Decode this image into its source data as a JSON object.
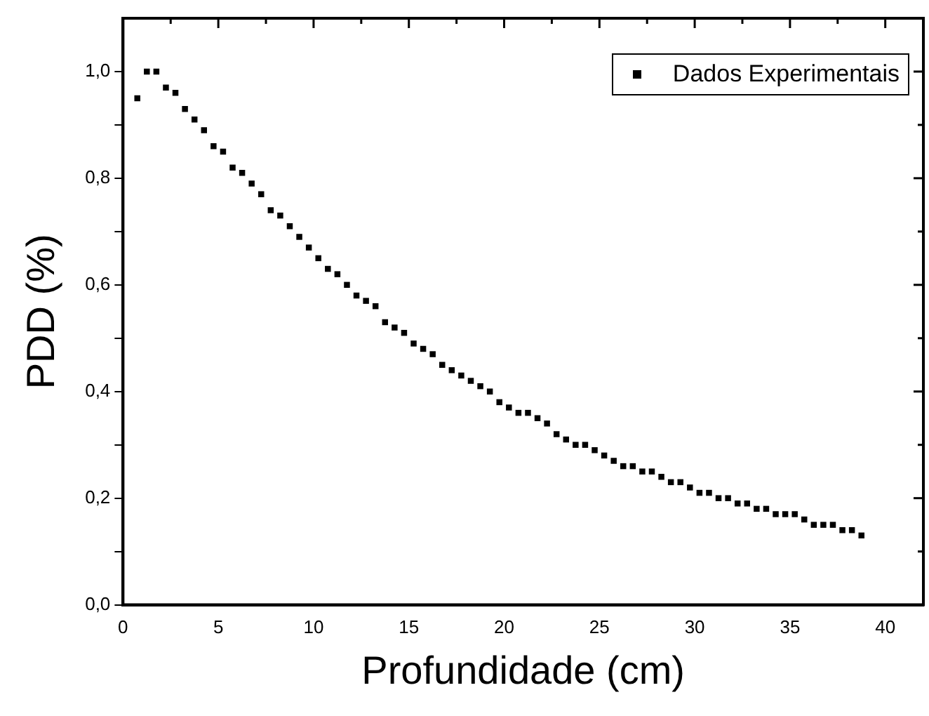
{
  "chart_data": {
    "type": "scatter",
    "xlabel": "Profundidade (cm)",
    "ylabel": "PDD (%)",
    "x": [
      0.75,
      1.25,
      1.75,
      2.25,
      2.75,
      3.25,
      3.75,
      4.25,
      4.75,
      5.25,
      5.75,
      6.25,
      6.75,
      7.25,
      7.75,
      8.25,
      8.75,
      9.25,
      9.75,
      10.25,
      10.75,
      11.25,
      11.75,
      12.25,
      12.75,
      13.25,
      13.75,
      14.25,
      14.75,
      15.25,
      15.75,
      16.25,
      16.75,
      17.25,
      17.75,
      18.25,
      18.75,
      19.25,
      19.75,
      20.25,
      20.75,
      21.25,
      21.75,
      22.25,
      22.75,
      23.25,
      23.75,
      24.25,
      24.75,
      25.25,
      25.75,
      26.25,
      26.75,
      27.25,
      27.75,
      28.25,
      28.75,
      29.25,
      29.75,
      30.25,
      30.75,
      31.25,
      31.75,
      32.25,
      32.75,
      33.25,
      33.75,
      34.25,
      34.75,
      35.25,
      35.75,
      36.25,
      36.75,
      37.25,
      37.75,
      38.25,
      38.75
    ],
    "series": [
      {
        "name": "Dados Experimentais",
        "color": "#000000",
        "values": [
          0.95,
          1.0,
          1.0,
          0.97,
          0.96,
          0.93,
          0.91,
          0.89,
          0.86,
          0.85,
          0.82,
          0.81,
          0.79,
          0.77,
          0.74,
          0.73,
          0.71,
          0.69,
          0.67,
          0.65,
          0.63,
          0.62,
          0.6,
          0.58,
          0.57,
          0.56,
          0.53,
          0.52,
          0.51,
          0.49,
          0.48,
          0.47,
          0.45,
          0.44,
          0.43,
          0.42,
          0.41,
          0.4,
          0.38,
          0.37,
          0.36,
          0.36,
          0.35,
          0.34,
          0.32,
          0.31,
          0.3,
          0.3,
          0.29,
          0.28,
          0.27,
          0.26,
          0.26,
          0.25,
          0.25,
          0.24,
          0.23,
          0.23,
          0.22,
          0.21,
          0.21,
          0.2,
          0.2,
          0.19,
          0.19,
          0.18,
          0.18,
          0.17,
          0.17,
          0.17,
          0.16,
          0.15,
          0.15,
          0.15,
          0.14,
          0.14,
          0.13
        ]
      }
    ],
    "xlim": [
      0,
      42
    ],
    "xticks": [
      0,
      {
        "value": 2.5,
        "label": null
      },
      5,
      {
        "value": 7.5,
        "label": null
      },
      10,
      {
        "value": 12.5,
        "label": null
      },
      15,
      {
        "value": 17.5,
        "label": null
      },
      20,
      {
        "value": 22.5,
        "label": null
      },
      25,
      {
        "value": 27.5,
        "label": null
      },
      30,
      {
        "value": 32.5,
        "label": null
      },
      35,
      {
        "value": 37.5,
        "label": null
      },
      40
    ],
    "ylim": [
      0,
      1.1
    ],
    "yticks": [
      {
        "value": 0,
        "label": "0,0"
      },
      {
        "value": 0.1,
        "label": null
      },
      {
        "value": 0.2,
        "label": "0,2"
      },
      {
        "value": 0.3,
        "label": null
      },
      {
        "value": 0.4,
        "label": "0,4"
      },
      {
        "value": 0.5,
        "label": null
      },
      {
        "value": 0.6,
        "label": "0,6"
      },
      {
        "value": 0.7,
        "label": null
      },
      {
        "value": 0.8,
        "label": "0,8"
      },
      {
        "value": 0.9,
        "label": null
      },
      {
        "value": 1.0,
        "label": "1,0"
      }
    ],
    "marker": "square",
    "legend": "top right",
    "grid": false
  }
}
